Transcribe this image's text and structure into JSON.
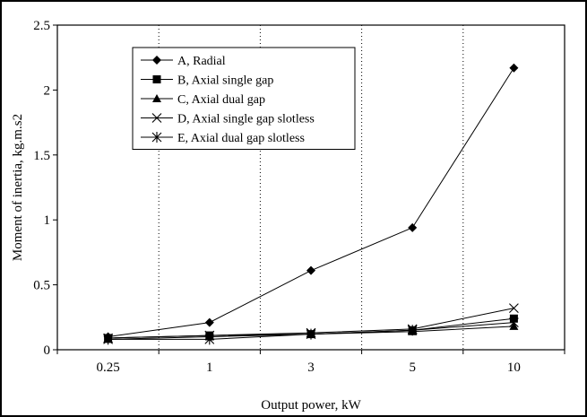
{
  "chart_data": {
    "type": "line",
    "title": "",
    "xlabel": "Output power, kW",
    "ylabel": "Moment of inertia, kg.m.s2",
    "categories": [
      "0.25",
      "1",
      "3",
      "5",
      "10"
    ],
    "ylim": [
      0,
      2.5
    ],
    "yticks": [
      "0",
      "0.5",
      "1",
      "1.5",
      "2",
      "2.5"
    ],
    "grid": "vertical-dotted",
    "legend_position": "top-left",
    "series": [
      {
        "name": "A, Radial",
        "marker": "diamond",
        "values": [
          0.1,
          0.21,
          0.61,
          0.94,
          2.17
        ]
      },
      {
        "name": "B, Axial single gap",
        "marker": "square",
        "values": [
          0.09,
          0.11,
          0.12,
          0.15,
          0.24
        ]
      },
      {
        "name": "C, Axial dual gap",
        "marker": "triangle",
        "values": [
          0.08,
          0.1,
          0.12,
          0.14,
          0.18
        ]
      },
      {
        "name": "D, Axial single gap slotless",
        "marker": "x",
        "values": [
          0.09,
          0.11,
          0.13,
          0.16,
          0.32
        ]
      },
      {
        "name": "E, Axial dual gap slotless",
        "marker": "star",
        "values": [
          0.08,
          0.08,
          0.12,
          0.15,
          0.21
        ]
      }
    ]
  }
}
